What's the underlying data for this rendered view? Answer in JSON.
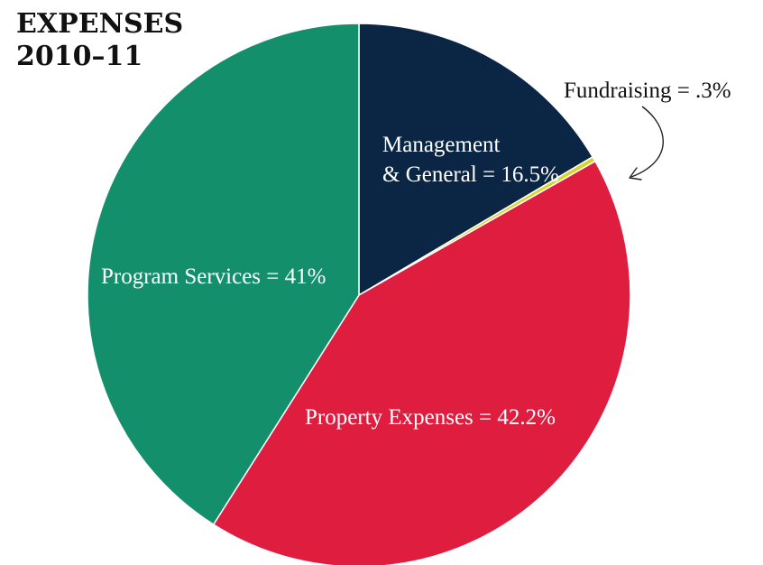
{
  "chart_data": {
    "type": "pie",
    "title_lines": [
      "EXPENSES",
      "2010–11"
    ],
    "slices": [
      {
        "name": "Management & General",
        "value": 16.5,
        "color": "#0b2545",
        "label_lines": [
          "Management",
          "& General = 16.5%"
        ],
        "label_color": "#ffffff"
      },
      {
        "name": "Fundraising",
        "value": 0.3,
        "color": "#d8d42a",
        "label_lines": [
          "Fundraising = .3%"
        ],
        "label_color": "#111111",
        "callout": true
      },
      {
        "name": "Property Expenses",
        "value": 42.2,
        "color": "#de1d3f",
        "label_lines": [
          "Property Expenses = 42.2%"
        ],
        "label_color": "#ffffff"
      },
      {
        "name": "Program Services",
        "value": 41,
        "color": "#13906b",
        "label_lines": [
          "Program Services = 41%"
        ],
        "label_color": "#ffffff"
      }
    ],
    "start_angle": "top (12 o'clock)",
    "direction": "clockwise"
  }
}
